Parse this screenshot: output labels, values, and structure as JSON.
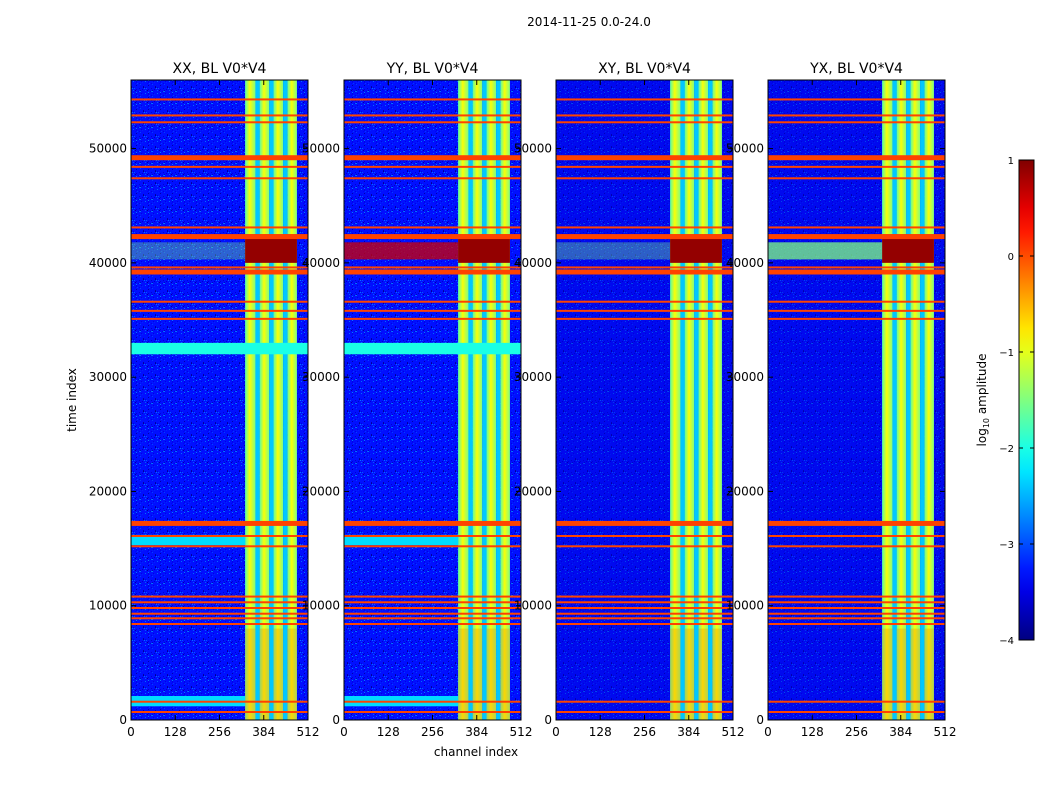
{
  "figure": {
    "suptitle": "2014-11-25 0.0-24.0"
  },
  "chart_data": {
    "type": "heatmap",
    "xlabel": "channel index",
    "ylabel": "time index",
    "xlim": [
      0,
      512
    ],
    "ylim": [
      0,
      56000
    ],
    "xticks": [
      0,
      128,
      256,
      384,
      512
    ],
    "yticks": [
      0,
      10000,
      20000,
      30000,
      40000,
      50000
    ],
    "panels": [
      {
        "title": "XX, BL V0*V4",
        "key": "XX"
      },
      {
        "title": "YY, BL V0*V4",
        "key": "YY"
      },
      {
        "title": "XY, BL V0*V4",
        "key": "XY"
      },
      {
        "title": "YX, BL V0*V4",
        "key": "YX"
      }
    ],
    "colorbar": {
      "label": "log10 amplitude",
      "label_main": "log",
      "label_sub": "10",
      "label_rest": " amplitude",
      "range": [
        -4,
        1
      ],
      "ticks": [
        1,
        0,
        -1,
        -2,
        -3,
        -4
      ],
      "tick_labels": [
        "1",
        "0",
        "−1",
        "−2",
        "−3",
        "−4"
      ],
      "colormap": "jet"
    },
    "flagged_rows_time_index": [
      700,
      1600,
      8400,
      8900,
      9300,
      9800,
      10300,
      10800,
      15200,
      16100,
      17200,
      35100,
      35800,
      36600,
      39200,
      39600,
      42300,
      43100,
      47400,
      48400,
      49200,
      52300,
      52900,
      54300
    ],
    "rfi_band_channels": [
      [
        330,
        360
      ],
      [
        372,
        400
      ],
      [
        412,
        440
      ],
      [
        452,
        480
      ]
    ],
    "strong_event_time_index": [
      40000,
      42500
    ],
    "background_level": -3.3,
    "band_level": -1.2,
    "event_level": 0.9
  }
}
